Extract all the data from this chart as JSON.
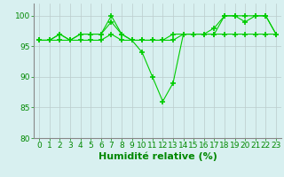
{
  "hours": [
    0,
    1,
    2,
    3,
    4,
    5,
    6,
    7,
    8,
    9,
    10,
    11,
    12,
    13,
    14,
    15,
    16,
    17,
    18,
    19,
    20,
    21,
    22,
    23
  ],
  "series": [
    [
      96,
      96,
      97,
      96,
      97,
      97,
      97,
      99,
      97,
      96,
      94,
      90,
      86,
      89,
      97,
      97,
      97,
      97,
      100,
      100,
      99,
      100,
      100,
      97
    ],
    [
      96,
      96,
      97,
      96,
      97,
      97,
      97,
      100,
      97,
      96,
      96,
      96,
      96,
      97,
      97,
      97,
      97,
      98,
      100,
      100,
      100,
      100,
      100,
      97
    ],
    [
      96,
      96,
      96,
      96,
      96,
      96,
      96,
      97,
      96,
      96,
      96,
      96,
      96,
      96,
      97,
      97,
      97,
      97,
      97,
      97,
      97,
      97,
      97,
      97
    ]
  ],
  "line_color": "#00cc00",
  "marker": "+",
  "marker_size": 4,
  "marker_linewidth": 1.2,
  "linewidth": 0.8,
  "xlabel": "Humidité relative (%)",
  "ylim": [
    80,
    102
  ],
  "yticks": [
    80,
    85,
    90,
    95,
    100
  ],
  "xticks": [
    0,
    1,
    2,
    3,
    4,
    5,
    6,
    7,
    8,
    9,
    10,
    11,
    12,
    13,
    14,
    15,
    16,
    17,
    18,
    19,
    20,
    21,
    22,
    23
  ],
  "bg_color": "#d8f0f0",
  "grid_color": "#bbcccc",
  "tick_label_color": "#008800",
  "xlabel_color": "#008800",
  "tick_fontsize": 6.5,
  "xlabel_fontsize": 8
}
